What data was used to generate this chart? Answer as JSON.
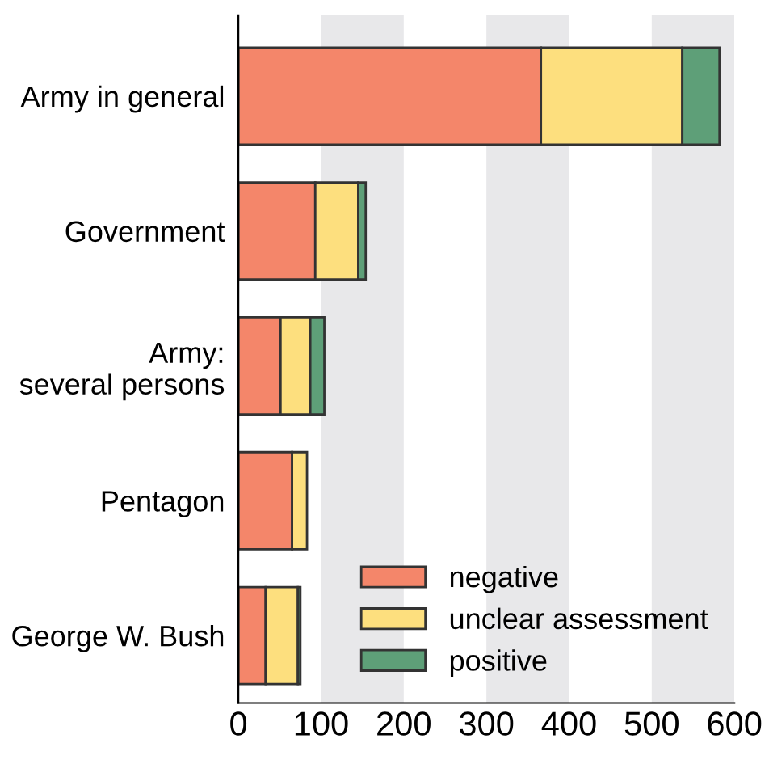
{
  "chart_data": {
    "type": "bar",
    "orientation": "horizontal",
    "stacked": true,
    "categories": [
      "Army in general",
      "Government",
      "Army:\nseveral persons",
      "Pentagon",
      "George W. Bush"
    ],
    "series": [
      {
        "name": "negative",
        "color": "#f4866a",
        "values": [
          366,
          93,
          51,
          65,
          33
        ]
      },
      {
        "name": "unclear assessment",
        "color": "#fddf7e",
        "values": [
          171,
          52,
          36,
          18,
          39
        ]
      },
      {
        "name": "positive",
        "color": "#5e9f78",
        "values": [
          45,
          9,
          17,
          null,
          3
        ]
      }
    ],
    "xlim": [
      0,
      600
    ],
    "xticks": [
      0,
      100,
      200,
      300,
      400,
      500,
      600
    ],
    "bands": [
      {
        "axis": "x",
        "from": 100,
        "to": 200,
        "color": "#e8e8ea"
      },
      {
        "axis": "x",
        "from": 300,
        "to": 400,
        "color": "#e8e8ea"
      },
      {
        "axis": "x",
        "from": 500,
        "to": 600,
        "color": "#e8e8ea"
      }
    ],
    "legend": "bottom right"
  }
}
